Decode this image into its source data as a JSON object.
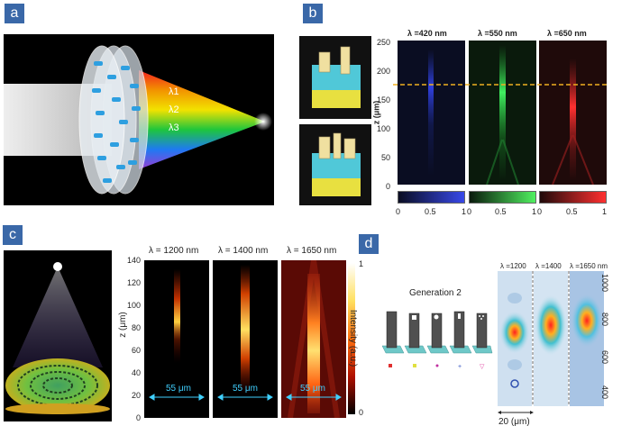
{
  "panels": {
    "a": {
      "label": "a",
      "lambda_labels": [
        "λ1",
        "λ2",
        "λ3"
      ]
    },
    "b": {
      "label": "b",
      "titles": [
        "λ =420 nm",
        "λ =550 nm",
        "λ =650 nm"
      ],
      "yaxis": {
        "label": "z (μm)",
        "ticks": [
          "0",
          "50",
          "100",
          "150",
          "200",
          "250"
        ]
      },
      "colorbar_ticks": [
        "0",
        "0.5",
        "1"
      ],
      "colors": [
        "#3040c8",
        "#30c040",
        "#d02020"
      ]
    },
    "c": {
      "label": "c",
      "titles": [
        "λ = 1200 nm",
        "λ = 1400 nm",
        "λ = 1650 nm"
      ],
      "yaxis": {
        "label": "z (μm)",
        "ticks": [
          "0",
          "20",
          "40",
          "60",
          "80",
          "100",
          "120",
          "140"
        ]
      },
      "width_labels": [
        "55 μm",
        "55 μm",
        "55 μm"
      ],
      "colorbar": {
        "label": "Intensity (a.u.)",
        "max": "1",
        "min": "0"
      }
    },
    "d": {
      "label": "d",
      "generation": "Generation 2",
      "titles": [
        "λ =1200",
        "λ =1400",
        "λ =1650 nm"
      ],
      "right_ticks": [
        "1000",
        "800",
        "600",
        "400"
      ],
      "scale": "20 (μm)"
    }
  }
}
